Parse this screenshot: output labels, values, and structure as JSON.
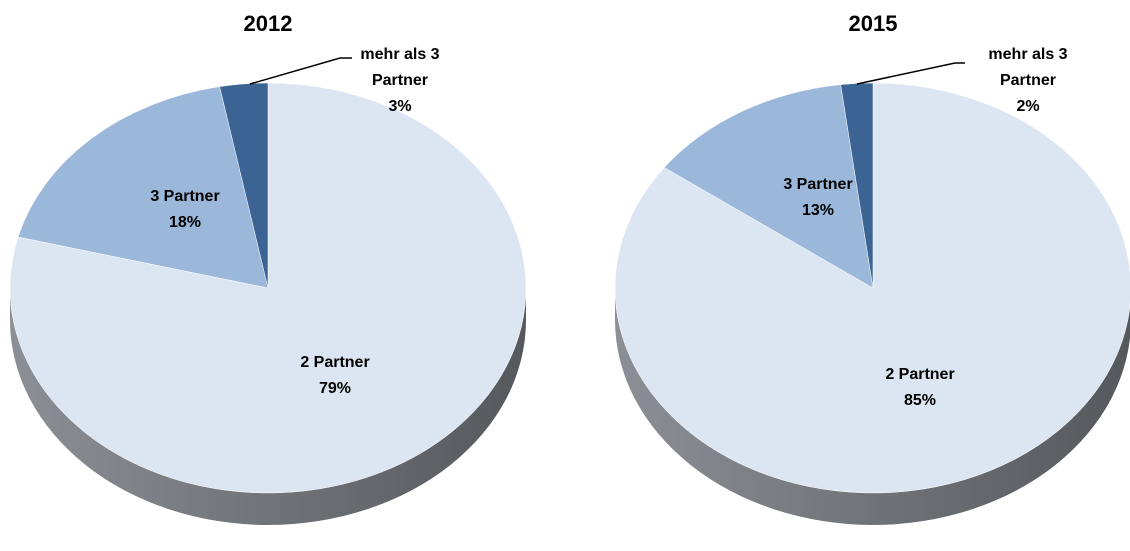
{
  "chart_data": [
    {
      "type": "pie",
      "title": "2012",
      "categories": [
        "2 Partner",
        "3 Partner",
        "mehr als 3 Partner"
      ],
      "values": [
        79,
        18,
        3
      ],
      "value_labels": [
        "79%",
        "18%",
        "3%"
      ],
      "colors": [
        "#dce6f2",
        "#9bb7da",
        "#3b6394"
      ]
    },
    {
      "type": "pie",
      "title": "2015",
      "categories": [
        "2 Partner",
        "3 Partner",
        "mehr als 3 Partner"
      ],
      "values": [
        85,
        13,
        2
      ],
      "value_labels": [
        "85%",
        "13%",
        "2%"
      ],
      "colors": [
        "#dce6f2",
        "#9bb7da",
        "#3b6394"
      ]
    }
  ]
}
